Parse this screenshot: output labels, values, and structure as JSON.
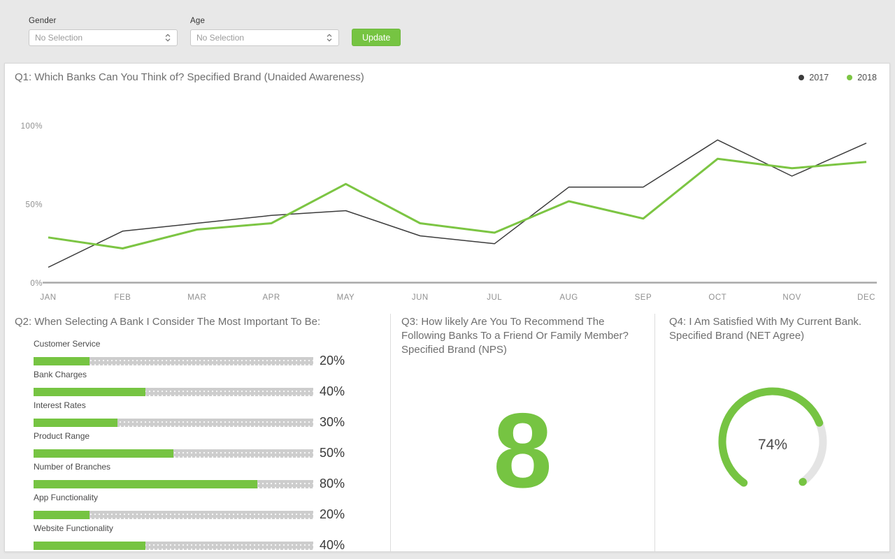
{
  "filters": {
    "gender": {
      "label": "Gender",
      "value": "No Selection"
    },
    "age": {
      "label": "Age",
      "value": "No Selection"
    },
    "update_label": "Update"
  },
  "chart_data": [
    {
      "type": "line",
      "title": "Q1: Which Banks Can You Think of? Specified Brand (Unaided Awareness)",
      "x": [
        "JAN",
        "FEB",
        "MAR",
        "APR",
        "MAY",
        "JUN",
        "JUL",
        "AUG",
        "SEP",
        "OCT",
        "NOV",
        "DEC"
      ],
      "series": [
        {
          "name": "2017",
          "color": "#3C3C3C",
          "values": [
            10,
            33,
            38,
            43,
            46,
            30,
            25,
            61,
            61,
            91,
            68,
            89
          ]
        },
        {
          "name": "2018",
          "color": "#7CC543",
          "values": [
            29,
            22,
            34,
            38,
            63,
            38,
            32,
            52,
            41,
            79,
            73,
            77
          ]
        }
      ],
      "ylim": [
        0,
        100
      ],
      "yticks": [
        {
          "value": 0,
          "label": "0%"
        },
        {
          "value": 50,
          "label": "50%"
        },
        {
          "value": 100,
          "label": "100%"
        }
      ],
      "unit": "%",
      "grid": false,
      "legend_position": "top-right"
    },
    {
      "type": "bar",
      "title": "Q2: When Selecting A Bank I Consider The Most Important To Be:",
      "orientation": "horizontal",
      "categories": [
        "Customer Service",
        "Bank Charges",
        "Interest Rates",
        "Product Range",
        "Number of Branches",
        "App Functionality",
        "Website Functionality"
      ],
      "values": [
        20,
        40,
        30,
        50,
        80,
        20,
        40
      ],
      "unit": "%",
      "xlim": [
        0,
        100
      ]
    },
    {
      "type": "number",
      "title": "Q3: How likely Are You To Recommend The Following Banks To a Friend Or Family Member? Specified Brand (NPS)",
      "value": 8
    },
    {
      "type": "gauge",
      "title": "Q4: I Am Satisfied With My Current Bank. Specified Brand (NET Agree)",
      "value": 74,
      "max": 100,
      "display": "74%"
    }
  ],
  "colors": {
    "accent": "#76C442",
    "line_2017": "#3C3C3C",
    "line_2018": "#7CC543",
    "bar_track": "#CDCDCD",
    "gauge_rest": "#E4E4E4",
    "background": "#E8E8E8"
  }
}
